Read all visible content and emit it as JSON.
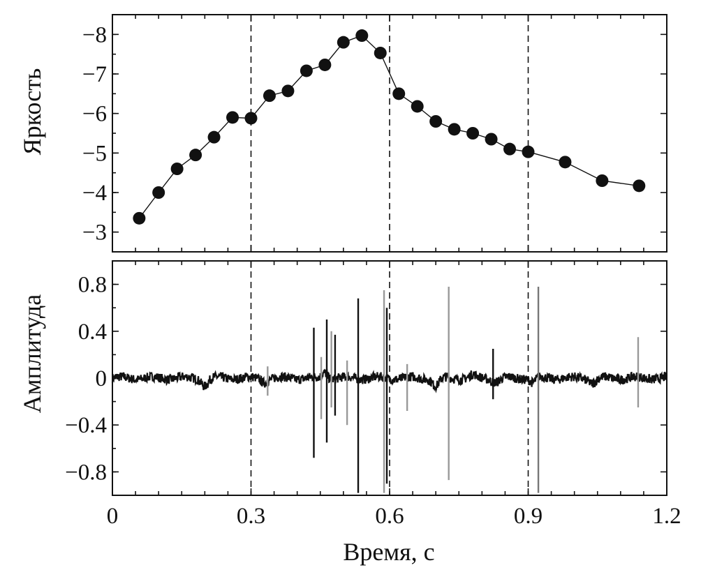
{
  "chart_data": [
    {
      "type": "line",
      "panel": "top",
      "ylabel": "Яркость",
      "xlim": [
        0,
        1.2
      ],
      "ylim": [
        -2.5,
        -8.5
      ],
      "y_inverted": true,
      "yticks": [
        -8,
        -7,
        -6,
        -5,
        -4,
        -3
      ],
      "ytick_labels": [
        "−8",
        "−7",
        "−6",
        "−5",
        "−4",
        "−3"
      ],
      "vertical_lines": [
        0.3,
        0.6,
        0.9
      ],
      "vertical_line_style": "dashed",
      "x": [
        0.058,
        0.1,
        0.14,
        0.18,
        0.22,
        0.26,
        0.3,
        0.34,
        0.38,
        0.42,
        0.46,
        0.5,
        0.54,
        0.58,
        0.62,
        0.66,
        0.7,
        0.74,
        0.78,
        0.82,
        0.86,
        0.9,
        0.98,
        1.06,
        1.14
      ],
      "y": [
        -3.35,
        -4.0,
        -4.6,
        -4.95,
        -5.4,
        -5.9,
        -5.88,
        -6.45,
        -6.57,
        -7.08,
        -7.23,
        -7.8,
        -7.97,
        -7.53,
        -6.5,
        -6.18,
        -5.8,
        -5.6,
        -5.5,
        -5.35,
        -5.1,
        -5.03,
        -4.77,
        -4.3,
        -4.17
      ],
      "marker": "circle",
      "color": "#111111"
    },
    {
      "type": "line",
      "panel": "bottom",
      "ylabel": "Амплитуда",
      "xlabel": "Время, с",
      "xlim": [
        0,
        1.2
      ],
      "ylim": [
        -1.0,
        1.0
      ],
      "yticks": [
        0.8,
        0.4,
        0,
        -0.4,
        -0.8
      ],
      "ytick_labels": [
        "0.8",
        "0.4",
        "0",
        "−0.4",
        "−0.8"
      ],
      "xticks": [
        0,
        0.3,
        0.6,
        0.9,
        1.2
      ],
      "xtick_labels": [
        "0",
        "0.3",
        "0.6",
        "0.9",
        "1.2"
      ],
      "vertical_lines": [
        0.3,
        0.6,
        0.9
      ],
      "vertical_line_style": "dashed",
      "signal": "noisy waveform around 0 with sharp spikes",
      "spikes": [
        {
          "x": 0.336,
          "top": 0.1,
          "bottom": -0.15,
          "color": "#999999"
        },
        {
          "x": 0.436,
          "top": 0.43,
          "bottom": -0.68,
          "color": "#111111"
        },
        {
          "x": 0.452,
          "top": 0.18,
          "bottom": -0.35,
          "color": "#999999"
        },
        {
          "x": 0.464,
          "top": 0.5,
          "bottom": -0.55,
          "color": "#111111"
        },
        {
          "x": 0.474,
          "top": 0.4,
          "bottom": -0.25,
          "color": "#999999"
        },
        {
          "x": 0.482,
          "top": 0.37,
          "bottom": -0.32,
          "color": "#111111"
        },
        {
          "x": 0.508,
          "top": 0.15,
          "bottom": -0.4,
          "color": "#999999"
        },
        {
          "x": 0.532,
          "top": 0.68,
          "bottom": -0.98,
          "color": "#111111"
        },
        {
          "x": 0.588,
          "top": 0.75,
          "bottom": -0.98,
          "color": "#999999"
        },
        {
          "x": 0.594,
          "top": 0.6,
          "bottom": -0.9,
          "color": "#111111"
        },
        {
          "x": 0.638,
          "top": 0.12,
          "bottom": -0.28,
          "color": "#999999"
        },
        {
          "x": 0.728,
          "top": 0.78,
          "bottom": -0.87,
          "color": "#999999"
        },
        {
          "x": 0.824,
          "top": 0.25,
          "bottom": -0.18,
          "color": "#111111"
        },
        {
          "x": 0.922,
          "top": 0.78,
          "bottom": -0.98,
          "color": "#777777"
        },
        {
          "x": 1.138,
          "top": 0.35,
          "bottom": -0.25,
          "color": "#999999"
        }
      ],
      "color": "#111111"
    }
  ]
}
